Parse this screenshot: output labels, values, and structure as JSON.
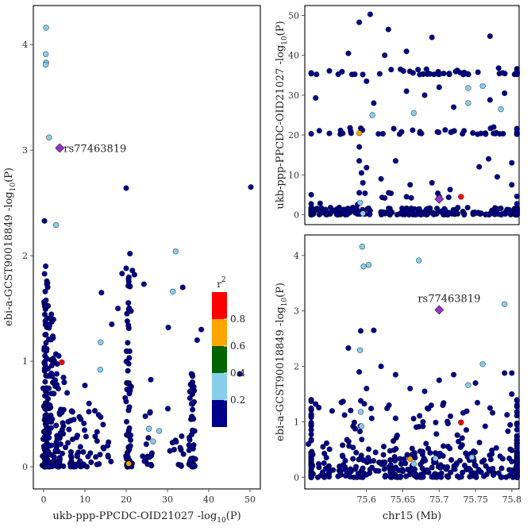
{
  "colors": {
    "ld_bins": [
      "#00008B",
      "#87CEEB",
      "#006400",
      "#FFA500",
      "#FF0000"
    ],
    "lead": "#9932CC",
    "frame": "#000000",
    "tick_line": "#555555"
  },
  "legend": {
    "title": "r",
    "title_sup": "2",
    "labels": [
      "0.2",
      "0.4",
      "0.6",
      "0.8"
    ]
  },
  "chart_data": [
    {
      "id": "scatter",
      "type": "scatter",
      "xlabel_main": "ukb-ppp-PPCDC-OID21027 -log",
      "xlabel_sub": "10",
      "xlabel_tail": "(P)",
      "ylabel_main": "ebi-a-GCST90018849 -log",
      "ylabel_sub": "10",
      "ylabel_tail": "(P)",
      "xlim": [
        -2.5,
        52.5
      ],
      "ylim": [
        -0.21,
        4.37
      ],
      "xticks": [
        0,
        10,
        20,
        30,
        40,
        50
      ],
      "yticks": [
        0,
        1,
        2,
        3,
        4
      ],
      "lead": {
        "label": "rs77463819",
        "x": 3.9,
        "y": 3.02
      },
      "colored_points": [
        {
          "x": 0.6,
          "y": 4.16,
          "r2": 0.3
        },
        {
          "x": 0.5,
          "y": 3.91,
          "r2": 0.3
        },
        {
          "x": 0.6,
          "y": 3.83,
          "r2": 0.3
        },
        {
          "x": 0.5,
          "y": 3.81,
          "r2": 0.3
        },
        {
          "x": 1.3,
          "y": 3.12,
          "r2": 0.3
        },
        {
          "x": 3.0,
          "y": 2.29,
          "r2": 0.3
        },
        {
          "x": 32.0,
          "y": 2.04,
          "r2": 0.3
        },
        {
          "x": 31.3,
          "y": 1.66,
          "r2": 0.3
        },
        {
          "x": 13.8,
          "y": 1.18,
          "r2": 0.3
        },
        {
          "x": 13.7,
          "y": 0.92,
          "r2": 0.3
        },
        {
          "x": 25.5,
          "y": 0.36,
          "r2": 0.3
        },
        {
          "x": 26.5,
          "y": 0.24,
          "r2": 0.3
        },
        {
          "x": 28.0,
          "y": 0.34,
          "r2": 0.3
        },
        {
          "x": 20.6,
          "y": 0.03,
          "r2": 0.7
        },
        {
          "x": 4.4,
          "y": 0.99,
          "r2": 0.9
        }
      ],
      "background_points": [
        {
          "x": 20.0,
          "y": 2.64
        },
        {
          "x": 50.2,
          "y": 2.65
        },
        {
          "x": 0.2,
          "y": 2.33
        },
        {
          "x": 0.5,
          "y": 1.9
        },
        {
          "x": 20.9,
          "y": 2.02
        },
        {
          "x": 20.0,
          "y": 1.88
        },
        {
          "x": 21.5,
          "y": 1.86
        },
        {
          "x": 22.0,
          "y": 1.82
        },
        {
          "x": 19.0,
          "y": 1.83
        },
        {
          "x": 14.0,
          "y": 1.65
        },
        {
          "x": 24.3,
          "y": 1.73
        },
        {
          "x": 33.7,
          "y": 1.7
        },
        {
          "x": 43.8,
          "y": 0.88
        },
        {
          "x": 47.5,
          "y": 0.88
        },
        {
          "x": 38.2,
          "y": 1.3
        },
        {
          "x": 37.2,
          "y": 1.2
        },
        {
          "x": 35.8,
          "y": 0.88
        },
        {
          "x": 36.0,
          "y": 0.8
        },
        {
          "x": 30.2,
          "y": 1.32
        },
        {
          "x": 18.0,
          "y": 1.5
        },
        {
          "x": 16.5,
          "y": 1.35
        },
        {
          "x": 10.0,
          "y": 0.77
        },
        {
          "x": 11.0,
          "y": 0.6
        },
        {
          "x": 12.4,
          "y": 0.53
        },
        {
          "x": 14.4,
          "y": 0.4
        },
        {
          "x": 9.0,
          "y": 0.45
        },
        {
          "x": 7.0,
          "y": 0.52
        },
        {
          "x": 5.7,
          "y": 0.7
        },
        {
          "x": 9.6,
          "y": 0.14
        },
        {
          "x": 15.5,
          "y": 0.2
        },
        {
          "x": 16.3,
          "y": 0.05
        },
        {
          "x": 30.1,
          "y": 0.55
        },
        {
          "x": 30.6,
          "y": 0.15
        },
        {
          "x": 33.1,
          "y": 0.18
        },
        {
          "x": 26.0,
          "y": 0.02
        },
        {
          "x": 24.0,
          "y": 0.1
        }
      ],
      "clusters": [
        {
          "x": 0.4,
          "xs": 0.25,
          "ymin": 0.0,
          "ymax": 1.85,
          "n": 120
        },
        {
          "x": 1.6,
          "xs": 0.4,
          "ymin": 0.0,
          "ymax": 1.45,
          "n": 60
        },
        {
          "x": 3.4,
          "xs": 0.7,
          "ymin": 0.0,
          "ymax": 1.1,
          "n": 45
        },
        {
          "x": 6.8,
          "xs": 1.8,
          "ymin": 0.0,
          "ymax": 0.55,
          "n": 35
        },
        {
          "x": 12.0,
          "xs": 2.2,
          "ymin": 0.0,
          "ymax": 0.55,
          "n": 25
        },
        {
          "x": 20.5,
          "xs": 0.35,
          "ymin": 0.0,
          "ymax": 1.85,
          "n": 65
        },
        {
          "x": 25.5,
          "xs": 0.8,
          "ymin": 0.0,
          "ymax": 0.9,
          "n": 14
        },
        {
          "x": 36.0,
          "xs": 0.4,
          "ymin": 0.0,
          "ymax": 0.9,
          "n": 45
        },
        {
          "x": 32.5,
          "xs": 1.0,
          "ymin": 0.0,
          "ymax": 0.35,
          "n": 10
        }
      ]
    },
    {
      "id": "top_regional",
      "type": "scatter",
      "ylabel_main": "ukb-ppp-PPCDC-OID21027 -log",
      "ylabel_sub": "10",
      "ylabel_tail": "(P)",
      "xlim": [
        75.515,
        75.81
      ],
      "ylim": [
        -2.5,
        52.5
      ],
      "yticks": [
        0,
        10,
        20,
        30,
        40,
        50
      ],
      "lead": {
        "x": 75.7,
        "y": 3.9
      },
      "colored_points": [
        {
          "x": 75.608,
          "y": 25.0,
          "r2": 0.3
        },
        {
          "x": 75.665,
          "y": 25.5,
          "r2": 0.3
        },
        {
          "x": 75.74,
          "y": 28.0,
          "r2": 0.3
        },
        {
          "x": 75.74,
          "y": 31.8,
          "r2": 0.3
        },
        {
          "x": 75.76,
          "y": 32.3,
          "r2": 0.3
        },
        {
          "x": 75.785,
          "y": 26.5,
          "r2": 0.3
        },
        {
          "x": 75.591,
          "y": 3.0,
          "r2": 0.3
        },
        {
          "x": 75.595,
          "y": 0.3,
          "r2": 0.3
        },
        {
          "x": 75.59,
          "y": 20.5,
          "r2": 0.7
        },
        {
          "x": 75.73,
          "y": 4.5,
          "r2": 0.9
        }
      ],
      "background_points": [
        {
          "x": 75.605,
          "y": 50.3
        },
        {
          "x": 75.59,
          "y": 48.3
        },
        {
          "x": 75.63,
          "y": 46.5
        },
        {
          "x": 75.69,
          "y": 44.5
        },
        {
          "x": 75.77,
          "y": 44.8
        },
        {
          "x": 75.655,
          "y": 41.0
        },
        {
          "x": 75.625,
          "y": 40.0
        },
        {
          "x": 75.575,
          "y": 40.5
        },
        {
          "x": 75.53,
          "y": 29.3
        },
        {
          "x": 75.6,
          "y": 33.5
        },
        {
          "x": 75.655,
          "y": 31.0
        },
        {
          "x": 75.7,
          "y": 32.0
        },
        {
          "x": 75.79,
          "y": 30.5
        },
        {
          "x": 75.61,
          "y": 28.0
        },
        {
          "x": 75.72,
          "y": 27.0
        },
        {
          "x": 75.77,
          "y": 28.8
        },
        {
          "x": 75.59,
          "y": 17.0
        },
        {
          "x": 75.59,
          "y": 13.5
        },
        {
          "x": 75.593,
          "y": 10.5
        },
        {
          "x": 75.6,
          "y": 11.8
        },
        {
          "x": 75.595,
          "y": 8.0
        },
        {
          "x": 75.64,
          "y": 13.5
        },
        {
          "x": 75.66,
          "y": 7.5
        },
        {
          "x": 75.69,
          "y": 8.0
        },
        {
          "x": 75.78,
          "y": 9.5
        },
        {
          "x": 75.8,
          "y": 13.0
        },
        {
          "x": 75.755,
          "y": 12.0
        },
        {
          "x": 75.59,
          "y": 5.5
        },
        {
          "x": 75.625,
          "y": 4.2
        },
        {
          "x": 75.655,
          "y": 4.5
        },
        {
          "x": 75.715,
          "y": 6.3
        },
        {
          "x": 75.8,
          "y": 7.5
        },
        {
          "x": 75.775,
          "y": 22.0
        },
        {
          "x": 75.768,
          "y": 14.0
        },
        {
          "x": 75.62,
          "y": 9.0
        },
        {
          "x": 75.68,
          "y": 30.0
        }
      ],
      "clusters": [
        {
          "x": 75.66,
          "xs": 0.145,
          "ymin": 0.0,
          "ymax": 1.8,
          "n": 260
        },
        {
          "x": 75.66,
          "xs": 0.11,
          "ymin": 0.5,
          "ymax": 5.5,
          "n": 30
        },
        {
          "x": 75.69,
          "xs": 0.1,
          "ymin": 35.2,
          "ymax": 36.8,
          "n": 55
        },
        {
          "x": 75.69,
          "xs": 0.1,
          "ymin": 20.2,
          "ymax": 21.8,
          "n": 45
        }
      ]
    },
    {
      "id": "bottom_regional",
      "type": "scatter",
      "xlabel": "chr15 (Mb)",
      "ylabel_main": "ebi-a-GCST90018849 -log",
      "ylabel_sub": "10",
      "ylabel_tail": "(P)",
      "xlim": [
        75.515,
        75.81
      ],
      "ylim": [
        -0.21,
        4.37
      ],
      "xticks": [
        75.6,
        75.65,
        75.7,
        75.75,
        75.8
      ],
      "xticklabels": [
        "75.6",
        "75.65",
        "75.7",
        "75.75",
        "75.8"
      ],
      "yticks": [
        0,
        1,
        2,
        3,
        4
      ],
      "lead": {
        "label": "rs77463819",
        "x": 75.7,
        "y": 3.02
      },
      "colored_points": [
        {
          "x": 75.594,
          "y": 4.16,
          "r2": 0.3
        },
        {
          "x": 75.603,
          "y": 3.83,
          "r2": 0.3
        },
        {
          "x": 75.596,
          "y": 3.8,
          "r2": 0.3
        },
        {
          "x": 75.672,
          "y": 3.91,
          "r2": 0.3
        },
        {
          "x": 75.79,
          "y": 3.12,
          "r2": 0.3
        },
        {
          "x": 75.591,
          "y": 2.29,
          "r2": 0.3
        },
        {
          "x": 75.76,
          "y": 2.04,
          "r2": 0.3
        },
        {
          "x": 75.74,
          "y": 1.66,
          "r2": 0.3
        },
        {
          "x": 75.592,
          "y": 1.18,
          "r2": 0.3
        },
        {
          "x": 75.593,
          "y": 0.92,
          "r2": 0.3
        },
        {
          "x": 75.745,
          "y": 0.36,
          "r2": 0.3
        },
        {
          "x": 75.665,
          "y": 0.24,
          "r2": 0.3
        },
        {
          "x": 75.695,
          "y": 0.34,
          "r2": 0.3
        },
        {
          "x": 75.66,
          "y": 0.33,
          "r2": 0.7
        },
        {
          "x": 75.73,
          "y": 0.99,
          "r2": 0.9
        }
      ],
      "background_points": [
        {
          "x": 75.592,
          "y": 2.64
        },
        {
          "x": 75.61,
          "y": 2.65
        },
        {
          "x": 75.575,
          "y": 2.33
        },
        {
          "x": 75.59,
          "y": 1.9
        },
        {
          "x": 75.62,
          "y": 2.0
        },
        {
          "x": 75.64,
          "y": 1.85
        },
        {
          "x": 75.7,
          "y": 1.75
        },
        {
          "x": 75.72,
          "y": 1.85
        },
        {
          "x": 75.79,
          "y": 1.88
        },
        {
          "x": 75.8,
          "y": 1.88
        },
        {
          "x": 75.8,
          "y": 1.5
        },
        {
          "x": 75.75,
          "y": 1.7
        },
        {
          "x": 75.53,
          "y": 1.32
        },
        {
          "x": 75.52,
          "y": 0.6
        },
        {
          "x": 75.54,
          "y": 0.55
        },
        {
          "x": 75.66,
          "y": 1.6
        },
        {
          "x": 75.68,
          "y": 1.55
        },
        {
          "x": 75.6,
          "y": 1.6
        },
        {
          "x": 75.705,
          "y": 1.3
        },
        {
          "x": 75.77,
          "y": 1.25
        }
      ],
      "clusters": [
        {
          "x": 75.67,
          "xs": 0.14,
          "ymin": 0.0,
          "ymax": 1.4,
          "n": 300
        },
        {
          "x": 75.67,
          "xs": 0.14,
          "ymin": 0.0,
          "ymax": 0.45,
          "n": 180
        }
      ]
    }
  ]
}
